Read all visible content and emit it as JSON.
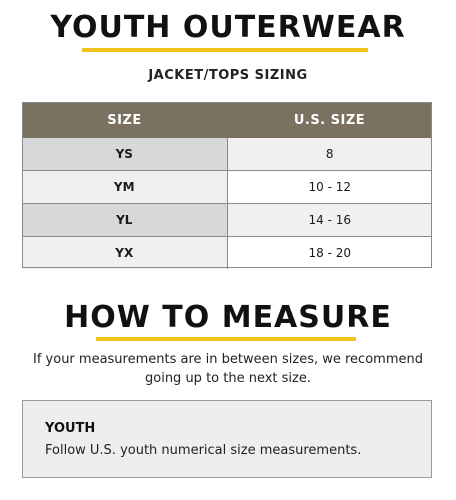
{
  "title": "YOUTH OUTERWEAR",
  "subtitle": "JACKET/TOPS SIZING",
  "table": {
    "headers": [
      "SIZE",
      "U.S. SIZE"
    ],
    "rows": [
      [
        "YS",
        "8"
      ],
      [
        "YM",
        "10 - 12"
      ],
      [
        "YL",
        "14 - 16"
      ],
      [
        "YX",
        "18 - 20"
      ]
    ]
  },
  "measure_title": "HOW TO MEASURE",
  "intro": "If your measurements are in between sizes, we recommend going up to the next size.",
  "youth": {
    "heading": "YOUTH",
    "text": "Follow U.S. youth numerical size measurements."
  },
  "colors": {
    "accent": "#f2c11a",
    "header_bg": "#7a7161"
  }
}
